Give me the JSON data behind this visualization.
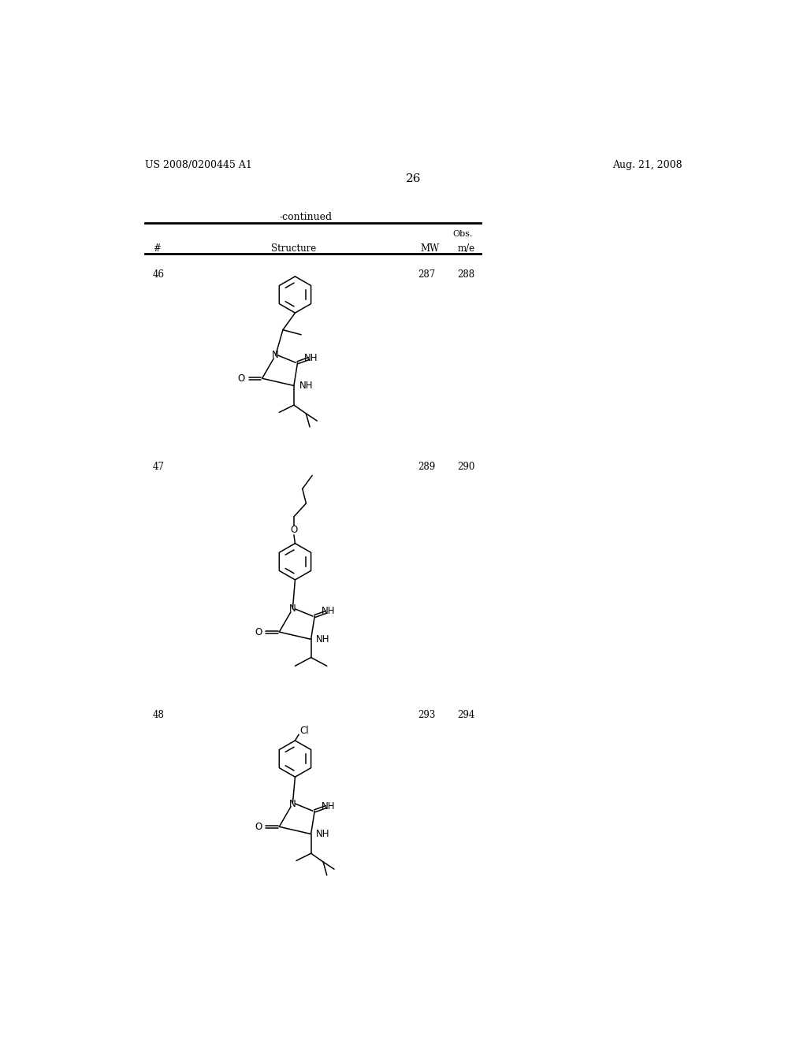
{
  "background_color": "#ffffff",
  "page_number": "26",
  "left_header": "US 2008/0200445 A1",
  "right_header": "Aug. 21, 2008",
  "continued_text": "-continued",
  "col_hash": "#",
  "col_structure": "Structure",
  "col_mw": "MW",
  "col_obs_top": "Obs.",
  "col_obs_bot": "m/e",
  "compounds": [
    {
      "number": "46",
      "mw": "287",
      "obs": "288"
    },
    {
      "number": "47",
      "mw": "289",
      "obs": "290"
    },
    {
      "number": "48",
      "mw": "293",
      "obs": "294"
    }
  ],
  "line_color": "#000000",
  "text_color": "#000000",
  "bond_lw": 1.1,
  "table_lw": 2.0
}
